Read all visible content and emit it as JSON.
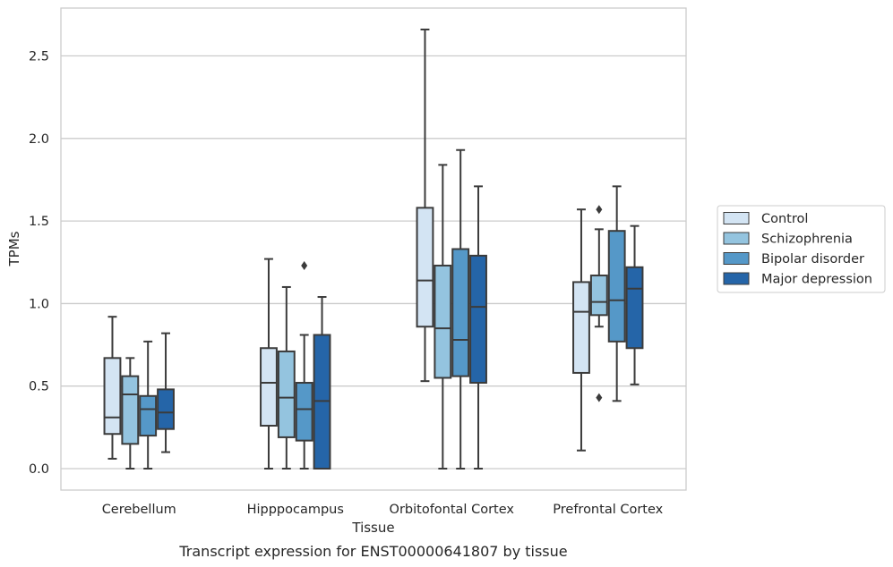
{
  "chart_data": {
    "type": "boxplot",
    "title": "",
    "caption": "Transcript expression for ENST00000641807 by tissue",
    "xlabel": "Tissue",
    "ylabel": "TPMs",
    "ylim": [
      -0.13,
      2.79
    ],
    "yticks": [
      0.0,
      0.5,
      1.0,
      1.5,
      2.0,
      2.5
    ],
    "ytick_labels": [
      "0.0",
      "0.5",
      "1.0",
      "1.5",
      "2.0",
      "2.5"
    ],
    "grid": "horizontal",
    "legend_position": "right",
    "categories": [
      "Cerebellum",
      "Hipppocampus",
      "Orbitofontal Cortex",
      "Prefrontal Cortex"
    ],
    "series": [
      {
        "name": "Control",
        "color": "#d3e4f3",
        "boxes": [
          {
            "whislo": 0.06,
            "q1": 0.21,
            "med": 0.31,
            "q3": 0.67,
            "whishi": 0.92,
            "fliers": []
          },
          {
            "whislo": 0.0,
            "q1": 0.26,
            "med": 0.52,
            "q3": 0.73,
            "whishi": 1.27,
            "fliers": []
          },
          {
            "whislo": 0.53,
            "q1": 0.86,
            "med": 1.14,
            "q3": 1.58,
            "whishi": 2.66,
            "fliers": []
          },
          {
            "whislo": 0.11,
            "q1": 0.58,
            "med": 0.95,
            "q3": 1.13,
            "whishi": 1.57,
            "fliers": []
          }
        ]
      },
      {
        "name": "Schizophrenia",
        "color": "#94c4df",
        "boxes": [
          {
            "whislo": 0.0,
            "q1": 0.15,
            "med": 0.45,
            "q3": 0.56,
            "whishi": 0.67,
            "fliers": []
          },
          {
            "whislo": 0.0,
            "q1": 0.19,
            "med": 0.43,
            "q3": 0.71,
            "whishi": 1.1,
            "fliers": []
          },
          {
            "whislo": 0.0,
            "q1": 0.55,
            "med": 0.85,
            "q3": 1.23,
            "whishi": 1.84,
            "fliers": []
          },
          {
            "whislo": 0.86,
            "q1": 0.93,
            "med": 1.01,
            "q3": 1.17,
            "whishi": 1.45,
            "fliers": [
              1.57,
              0.43
            ]
          }
        ]
      },
      {
        "name": "Bipolar disorder",
        "color": "#5598c8",
        "boxes": [
          {
            "whislo": 0.0,
            "q1": 0.2,
            "med": 0.36,
            "q3": 0.44,
            "whishi": 0.77,
            "fliers": []
          },
          {
            "whislo": 0.0,
            "q1": 0.17,
            "med": 0.36,
            "q3": 0.52,
            "whishi": 0.81,
            "fliers": [
              1.23
            ]
          },
          {
            "whislo": 0.0,
            "q1": 0.56,
            "med": 0.78,
            "q3": 1.33,
            "whishi": 1.93,
            "fliers": []
          },
          {
            "whislo": 0.41,
            "q1": 0.77,
            "med": 1.02,
            "q3": 1.44,
            "whishi": 1.71,
            "fliers": []
          }
        ]
      },
      {
        "name": "Major depression",
        "color": "#2565a8",
        "boxes": [
          {
            "whislo": 0.1,
            "q1": 0.24,
            "med": 0.34,
            "q3": 0.48,
            "whishi": 0.82,
            "fliers": []
          },
          {
            "whislo": 0.0,
            "q1": 0.0,
            "med": 0.41,
            "q3": 0.81,
            "whishi": 1.04,
            "fliers": []
          },
          {
            "whislo": 0.0,
            "q1": 0.52,
            "med": 0.98,
            "q3": 1.29,
            "whishi": 1.71,
            "fliers": []
          },
          {
            "whislo": 0.51,
            "q1": 0.73,
            "med": 1.09,
            "q3": 1.22,
            "whishi": 1.47,
            "fliers": []
          }
        ]
      }
    ]
  }
}
